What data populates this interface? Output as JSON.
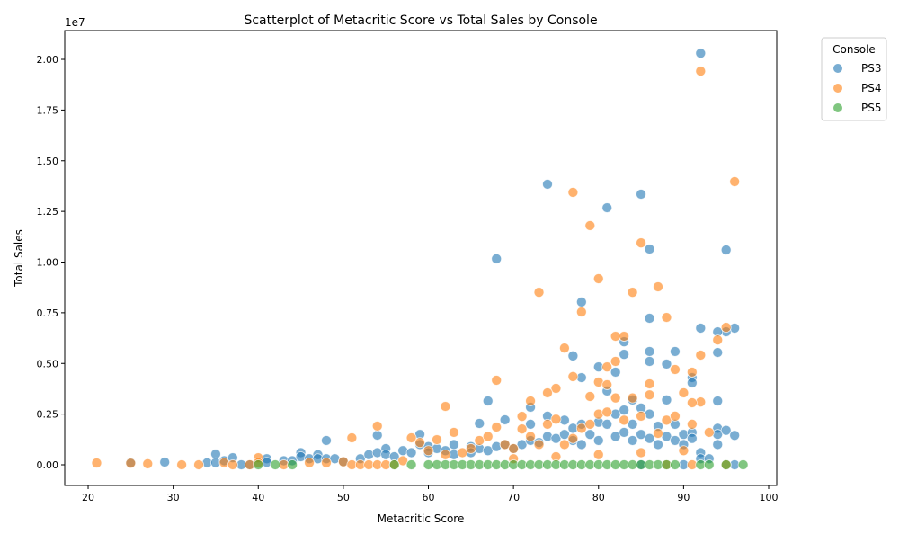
{
  "chart_data": {
    "type": "scatter",
    "title": "Scatterplot of Metacritic Score vs Total Sales by Console",
    "xlabel": "Metacritic Score",
    "ylabel": "Total Sales",
    "y_offset_label": "1e7",
    "xlim": [
      17.25,
      100.95
    ],
    "ylim": [
      -0.102,
      2.142
    ],
    "x_ticks": [
      20,
      30,
      40,
      50,
      60,
      70,
      80,
      90,
      100
    ],
    "y_ticks": [
      "0.00",
      "0.25",
      "0.50",
      "0.75",
      "1.00",
      "1.25",
      "1.50",
      "1.75",
      "2.00"
    ],
    "grid": false,
    "legend": {
      "title": "Console",
      "placement": "outside-top-right"
    },
    "series": [
      {
        "name": "PS3",
        "color": "#1f77b4",
        "points": [
          [
            92,
            2.03
          ],
          [
            74,
            1.384
          ],
          [
            85,
            1.335
          ],
          [
            81,
            1.268
          ],
          [
            68,
            1.016
          ],
          [
            86,
            1.064
          ],
          [
            95,
            1.06
          ],
          [
            78,
            0.803
          ],
          [
            86,
            0.723
          ],
          [
            92,
            0.674
          ],
          [
            96,
            0.674
          ],
          [
            95,
            0.656
          ],
          [
            94,
            0.656
          ],
          [
            83,
            0.607
          ],
          [
            77,
            0.537
          ],
          [
            86,
            0.559
          ],
          [
            89,
            0.559
          ],
          [
            94,
            0.554
          ],
          [
            83,
            0.545
          ],
          [
            80,
            0.483
          ],
          [
            88,
            0.497
          ],
          [
            86,
            0.51
          ],
          [
            82,
            0.457
          ],
          [
            78,
            0.43
          ],
          [
            91,
            0.43
          ],
          [
            91,
            0.404
          ],
          [
            81,
            0.364
          ],
          [
            67,
            0.315
          ],
          [
            94,
            0.315
          ],
          [
            72,
            0.284
          ],
          [
            69,
            0.222
          ],
          [
            66,
            0.204
          ],
          [
            48,
            0.12
          ],
          [
            54,
            0.146
          ],
          [
            59,
            0.15
          ],
          [
            35,
            0.053
          ],
          [
            29,
            0.013
          ],
          [
            25,
            0.01
          ],
          [
            34,
            0.01
          ],
          [
            35,
            0.01
          ],
          [
            36,
            0.02
          ],
          [
            37,
            0.035
          ],
          [
            38,
            0.0
          ],
          [
            39,
            0.0
          ],
          [
            41,
            0.03
          ],
          [
            41,
            0.012
          ],
          [
            43,
            0.02
          ],
          [
            44,
            0.02
          ],
          [
            45,
            0.06
          ],
          [
            45,
            0.04
          ],
          [
            46,
            0.03
          ],
          [
            47,
            0.05
          ],
          [
            47,
            0.03
          ],
          [
            48,
            0.03
          ],
          [
            49,
            0.03
          ],
          [
            50,
            0.015
          ],
          [
            52,
            0.03
          ],
          [
            53,
            0.05
          ],
          [
            54,
            0.06
          ],
          [
            55,
            0.08
          ],
          [
            55,
            0.05
          ],
          [
            56,
            0.04
          ],
          [
            57,
            0.07
          ],
          [
            58,
            0.06
          ],
          [
            59,
            0.1
          ],
          [
            60,
            0.09
          ],
          [
            60,
            0.06
          ],
          [
            61,
            0.08
          ],
          [
            62,
            0.07
          ],
          [
            63,
            0.1
          ],
          [
            63,
            0.05
          ],
          [
            65,
            0.09
          ],
          [
            65,
            0.06
          ],
          [
            66,
            0.08
          ],
          [
            67,
            0.07
          ],
          [
            68,
            0.09
          ],
          [
            69,
            0.1
          ],
          [
            70,
            0.08
          ],
          [
            71,
            0.1
          ],
          [
            72,
            0.2
          ],
          [
            72,
            0.12
          ],
          [
            73,
            0.11
          ],
          [
            74,
            0.24
          ],
          [
            74,
            0.14
          ],
          [
            75,
            0.13
          ],
          [
            76,
            0.22
          ],
          [
            76,
            0.15
          ],
          [
            77,
            0.18
          ],
          [
            77,
            0.12
          ],
          [
            78,
            0.2
          ],
          [
            78,
            0.1
          ],
          [
            79,
            0.15
          ],
          [
            80,
            0.21
          ],
          [
            80,
            0.12
          ],
          [
            81,
            0.2
          ],
          [
            82,
            0.25
          ],
          [
            82,
            0.14
          ],
          [
            83,
            0.27
          ],
          [
            83,
            0.16
          ],
          [
            84,
            0.32
          ],
          [
            84,
            0.2
          ],
          [
            84,
            0.12
          ],
          [
            85,
            0.28
          ],
          [
            85,
            0.15
          ],
          [
            86,
            0.25
          ],
          [
            86,
            0.13
          ],
          [
            87,
            0.19
          ],
          [
            87,
            0.1
          ],
          [
            88,
            0.32
          ],
          [
            88,
            0.14
          ],
          [
            89,
            0.2
          ],
          [
            89,
            0.12
          ],
          [
            90,
            0.15
          ],
          [
            90,
            0.1
          ],
          [
            91,
            0.16
          ],
          [
            91,
            0.13
          ],
          [
            92,
            0.06
          ],
          [
            92,
            0.03
          ],
          [
            93,
            0.03
          ],
          [
            94,
            0.18
          ],
          [
            94,
            0.15
          ],
          [
            94,
            0.1
          ],
          [
            95,
            0.17
          ],
          [
            96,
            0.145
          ],
          [
            96,
            0.0
          ],
          [
            90,
            0.0
          ],
          [
            85,
            0.0
          ]
        ]
      },
      {
        "name": "PS4",
        "color": "#ff7f0e",
        "points": [
          [
            92,
            1.942
          ],
          [
            96,
            1.397
          ],
          [
            77,
            1.344
          ],
          [
            79,
            1.18
          ],
          [
            85,
            1.095
          ],
          [
            80,
            0.918
          ],
          [
            73,
            0.851
          ],
          [
            84,
            0.851
          ],
          [
            87,
            0.878
          ],
          [
            78,
            0.754
          ],
          [
            88,
            0.727
          ],
          [
            95,
            0.678
          ],
          [
            76,
            0.576
          ],
          [
            92,
            0.541
          ],
          [
            82,
            0.634
          ],
          [
            83,
            0.634
          ],
          [
            94,
            0.616
          ],
          [
            82,
            0.51
          ],
          [
            81,
            0.483
          ],
          [
            89,
            0.47
          ],
          [
            91,
            0.457
          ],
          [
            68,
            0.417
          ],
          [
            77,
            0.435
          ],
          [
            80,
            0.408
          ],
          [
            81,
            0.395
          ],
          [
            86,
            0.399
          ],
          [
            75,
            0.377
          ],
          [
            74,
            0.355
          ],
          [
            90,
            0.355
          ],
          [
            79,
            0.337
          ],
          [
            62,
            0.288
          ],
          [
            72,
            0.315
          ],
          [
            92,
            0.31
          ],
          [
            91,
            0.306
          ],
          [
            54,
            0.191
          ],
          [
            51,
            0.133
          ],
          [
            21,
            0.009
          ],
          [
            25,
            0.008
          ],
          [
            27,
            0.005
          ],
          [
            31,
            0.0
          ],
          [
            33,
            0.0
          ],
          [
            36,
            0.01
          ],
          [
            37,
            0.0
          ],
          [
            39,
            0.0
          ],
          [
            40,
            0.035
          ],
          [
            40,
            0.01
          ],
          [
            43,
            0.0
          ],
          [
            46,
            0.01
          ],
          [
            48,
            0.01
          ],
          [
            50,
            0.015
          ],
          [
            51,
            0.0
          ],
          [
            52,
            0.0
          ],
          [
            53,
            0.0
          ],
          [
            54,
            0.0
          ],
          [
            55,
            0.0
          ],
          [
            56,
            0.0
          ],
          [
            57,
            0.02
          ],
          [
            58,
            0.133
          ],
          [
            59,
            0.11
          ],
          [
            60,
            0.07
          ],
          [
            61,
            0.124
          ],
          [
            62,
            0.05
          ],
          [
            63,
            0.16
          ],
          [
            64,
            0.06
          ],
          [
            65,
            0.08
          ],
          [
            66,
            0.12
          ],
          [
            67,
            0.14
          ],
          [
            68,
            0.186
          ],
          [
            69,
            0.1
          ],
          [
            70,
            0.08
          ],
          [
            71,
            0.177
          ],
          [
            71,
            0.239
          ],
          [
            72,
            0.14
          ],
          [
            73,
            0.1
          ],
          [
            74,
            0.2
          ],
          [
            75,
            0.225
          ],
          [
            76,
            0.1
          ],
          [
            77,
            0.13
          ],
          [
            78,
            0.18
          ],
          [
            79,
            0.2
          ],
          [
            80,
            0.25
          ],
          [
            81,
            0.26
          ],
          [
            82,
            0.33
          ],
          [
            83,
            0.22
          ],
          [
            84,
            0.33
          ],
          [
            85,
            0.24
          ],
          [
            86,
            0.345
          ],
          [
            87,
            0.155
          ],
          [
            88,
            0.22
          ],
          [
            89,
            0.24
          ],
          [
            90,
            0.07
          ],
          [
            91,
            0.2
          ],
          [
            93,
            0.16
          ],
          [
            95,
            0.0
          ],
          [
            70,
            0.03
          ],
          [
            75,
            0.04
          ],
          [
            80,
            0.05
          ],
          [
            85,
            0.06
          ],
          [
            88,
            0.0
          ],
          [
            91,
            0.0
          ]
        ]
      },
      {
        "name": "PS5",
        "color": "#2ca02c",
        "points": [
          [
            40,
            0.0
          ],
          [
            42,
            0.0
          ],
          [
            44,
            0.0
          ],
          [
            56,
            0.0
          ],
          [
            58,
            0.0
          ],
          [
            60,
            0.0
          ],
          [
            61,
            0.0
          ],
          [
            62,
            0.0
          ],
          [
            63,
            0.0
          ],
          [
            64,
            0.0
          ],
          [
            65,
            0.0
          ],
          [
            66,
            0.0
          ],
          [
            67,
            0.0
          ],
          [
            68,
            0.0
          ],
          [
            69,
            0.0
          ],
          [
            70,
            0.0
          ],
          [
            71,
            0.0
          ],
          [
            72,
            0.0
          ],
          [
            73,
            0.0
          ],
          [
            74,
            0.0
          ],
          [
            75,
            0.0
          ],
          [
            76,
            0.0
          ],
          [
            77,
            0.0
          ],
          [
            78,
            0.0
          ],
          [
            79,
            0.0
          ],
          [
            80,
            0.0
          ],
          [
            81,
            0.0
          ],
          [
            82,
            0.0
          ],
          [
            83,
            0.0
          ],
          [
            84,
            0.0
          ],
          [
            85,
            0.0
          ],
          [
            86,
            0.0
          ],
          [
            87,
            0.0
          ],
          [
            88,
            0.0
          ],
          [
            89,
            0.0
          ],
          [
            92,
            0.0
          ],
          [
            93,
            0.0
          ],
          [
            95,
            0.0
          ],
          [
            97,
            0.0
          ]
        ]
      }
    ]
  }
}
